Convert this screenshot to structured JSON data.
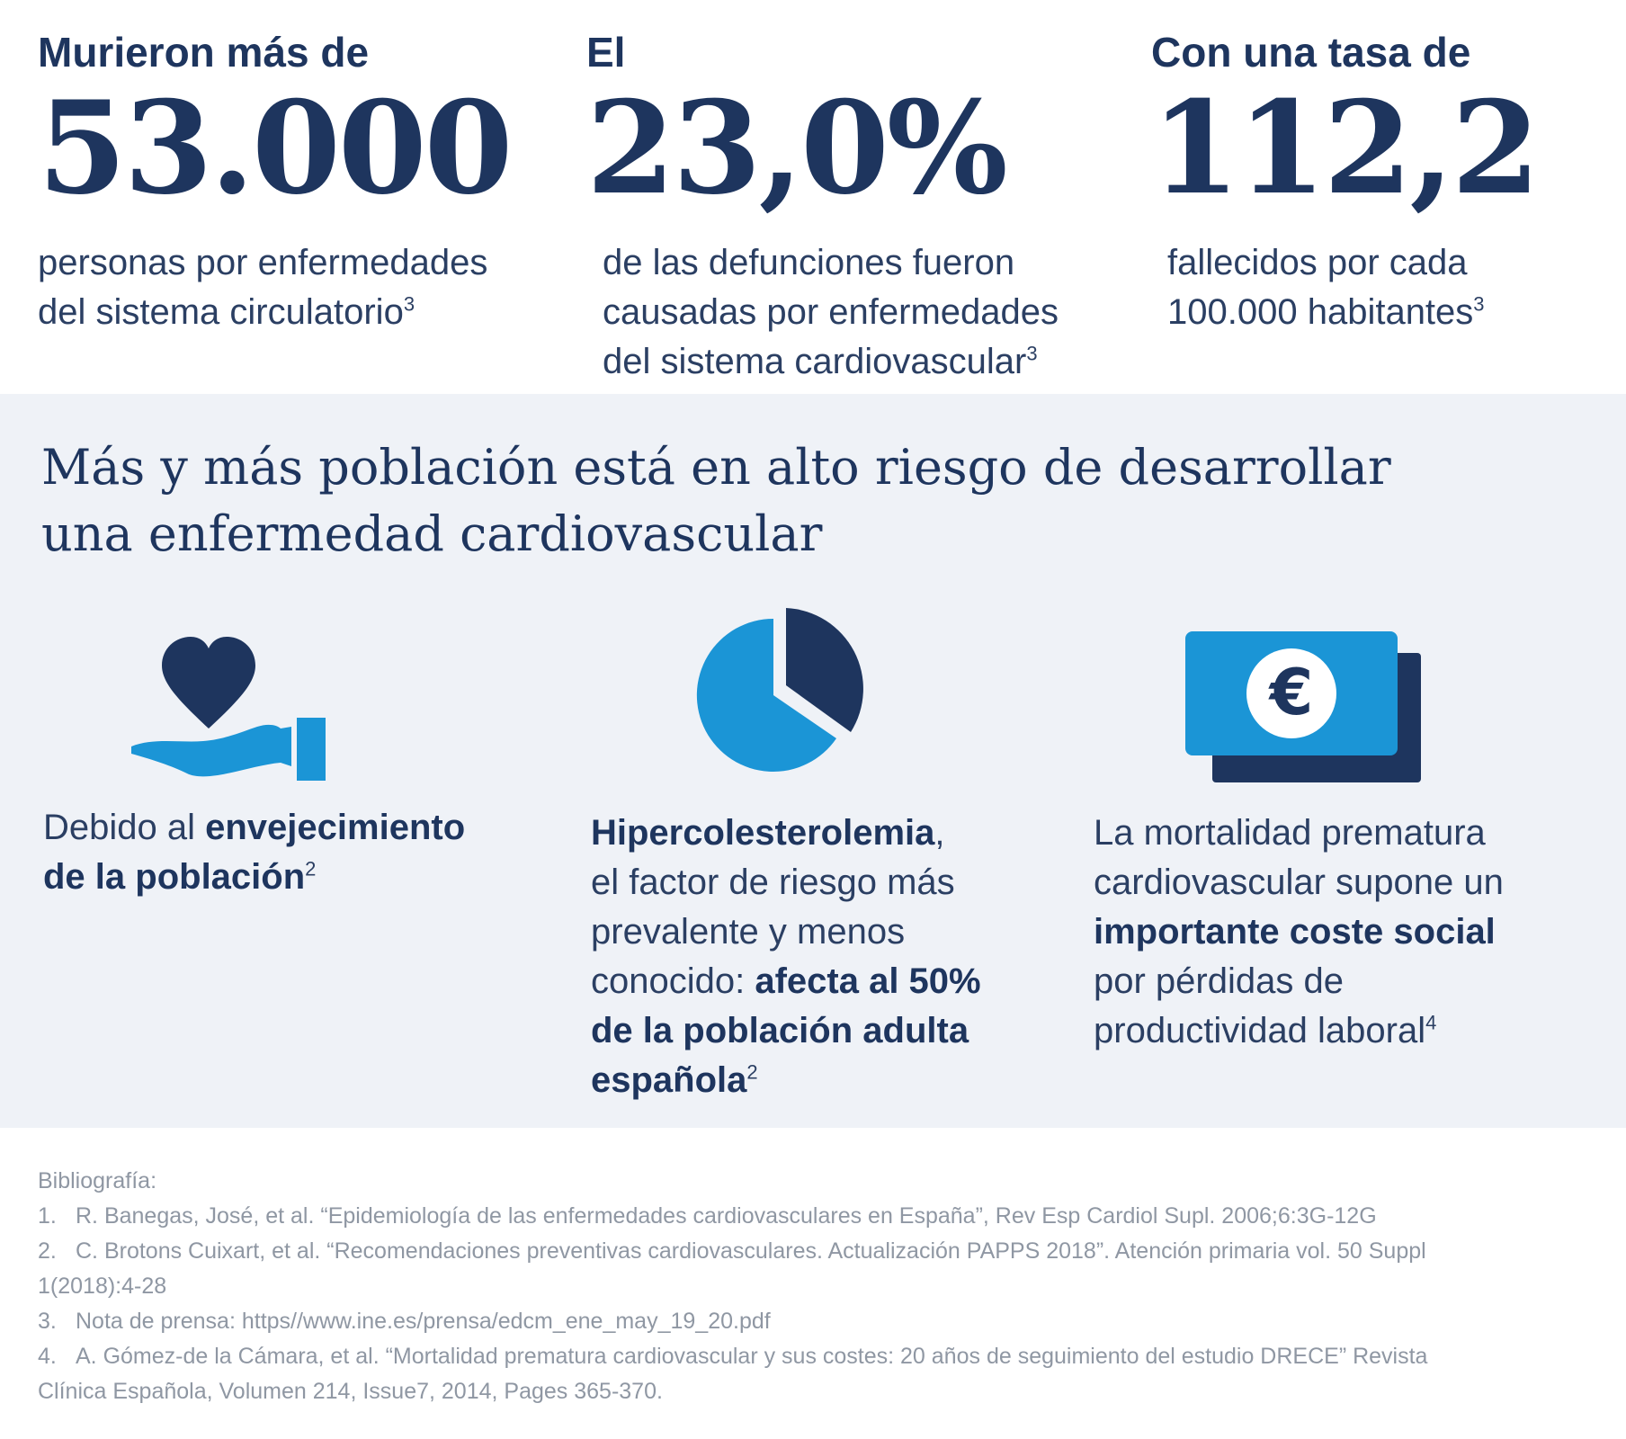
{
  "stats": [
    {
      "kicker": "Murieron más de",
      "value": "53.000",
      "desc_lines": [
        "personas por enfermedades",
        "del sistema circulatorio"
      ],
      "sup": "3"
    },
    {
      "kicker": "El",
      "value": "23,0%",
      "desc_lines": [
        "de las defunciones fueron",
        "causadas por enfermedades",
        "del sistema cardiovascular"
      ],
      "sup": "3"
    },
    {
      "kicker": "Con una tasa de",
      "value": "112,2",
      "desc_lines": [
        "fallecidos por cada",
        "100.000 habitantes"
      ],
      "sup": "3"
    }
  ],
  "risk": {
    "title_lines": [
      "Más y más población está en alto riesgo de desarrollar",
      "una enfermedad cardiovascular"
    ],
    "cards": [
      {
        "icon": "heart-hand-icon",
        "parts": [
          "Debido al ",
          "envejecimiento",
          "de la población",
          "2"
        ]
      },
      {
        "icon": "pie-chart-icon",
        "parts": [
          "Hipercolesterolemia",
          ",",
          "el factor de riesgo más",
          "prevalente y menos",
          "conocido: ",
          "afecta al 50%",
          "de la población adulta",
          "española",
          "2"
        ]
      },
      {
        "icon": "euro-banknote-icon",
        "parts": [
          "La mortalidad prematura",
          "cardiovascular supone un",
          "importante coste social",
          "por pérdidas de",
          "productividad laboral",
          "4"
        ]
      }
    ]
  },
  "bibliography": {
    "heading": "Bibliografía:",
    "lines": [
      {
        "num": "1.",
        "text": "R. Banegas, José, et al. “Epidemiología de las enfermedades cardiovasculares en España”, Rev Esp Cardiol Supl. 2006;6:3G-12G"
      },
      {
        "num": "2.",
        "text": "C. Brotons Cuixart, et al. “Recomendaciones preventivas cardiovasculares. Actualización PAPPS 2018”. Atención primaria vol. 50 Suppl"
      },
      {
        "num": "",
        "text": "1(2018):4-28"
      },
      {
        "num": "3.",
        "text": "Nota de prensa: https//www.ine.es/prensa/edcm_ene_may_19_20.pdf"
      },
      {
        "num": "4.",
        "text": "A. Gómez-de la Cámara, et al. “Mortalidad prematura cardiovascular y sus costes: 20 años de seguimiento del estudio DRECE” Revista"
      },
      {
        "num": "",
        "text": "Clínica Española, Volumen 214, Issue7, 2014, Pages 365-370."
      }
    ]
  },
  "colors": {
    "navy": "#1e355e",
    "blue": "#1b95d6",
    "band": "#eff2f7",
    "footer_text": "#8f97a3"
  }
}
